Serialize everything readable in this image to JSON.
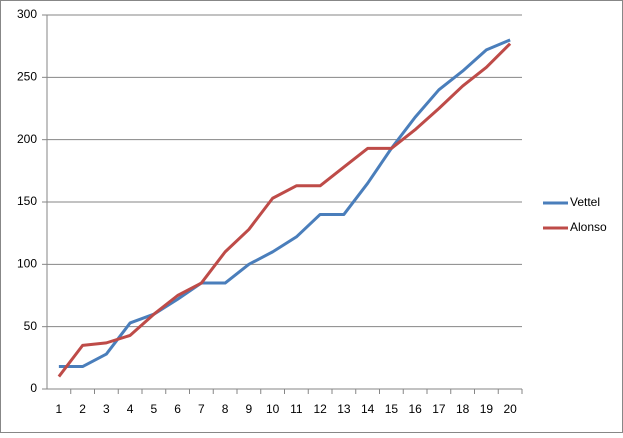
{
  "chart_data": {
    "type": "line",
    "categories": [
      "1",
      "2",
      "3",
      "4",
      "5",
      "6",
      "7",
      "8",
      "9",
      "10",
      "11",
      "12",
      "13",
      "14",
      "15",
      "16",
      "17",
      "18",
      "19",
      "20"
    ],
    "series": [
      {
        "name": "Vettel",
        "color": "#4a7ebb",
        "values": [
          18,
          18,
          28,
          53,
          60,
          72,
          85,
          85,
          100,
          110,
          122,
          140,
          140,
          165,
          193,
          218,
          240,
          255,
          272,
          280
        ]
      },
      {
        "name": "Alonso",
        "color": "#be4b48",
        "values": [
          10,
          35,
          37,
          43,
          60,
          75,
          85,
          110,
          128,
          153,
          163,
          163,
          178,
          193,
          193,
          208,
          225,
          243,
          258,
          277
        ]
      }
    ],
    "ylim": [
      0,
      300
    ],
    "yticks": [
      0,
      50,
      100,
      150,
      200,
      250,
      300
    ],
    "grid": true,
    "legend": "right"
  }
}
